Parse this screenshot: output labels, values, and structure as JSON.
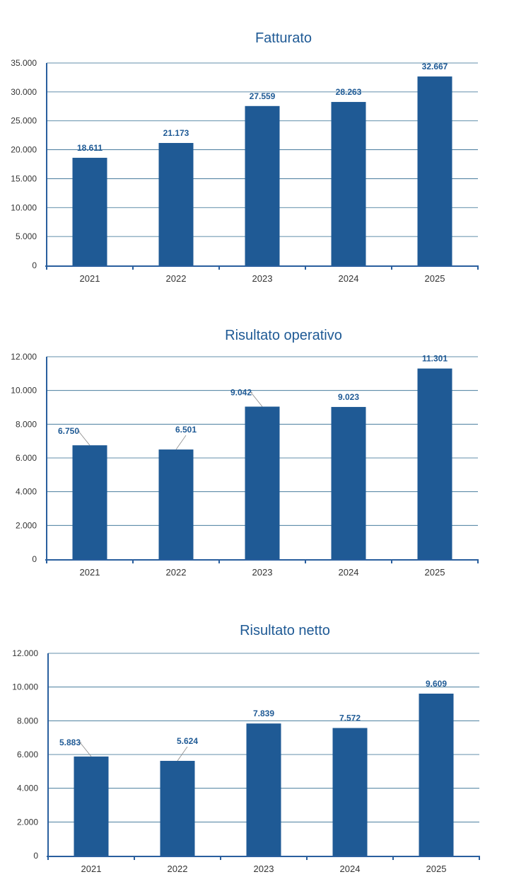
{
  "chart_data": [
    {
      "type": "bar",
      "title": "Fatturato",
      "categories": [
        "2021",
        "2022",
        "2023",
        "2024",
        "2025"
      ],
      "values": [
        18611,
        21173,
        27559,
        28263,
        32667
      ],
      "data_labels": [
        "18.611",
        "21.173",
        "27.559",
        "28.263",
        "32.667"
      ],
      "yticks": [
        0,
        5000,
        10000,
        15000,
        20000,
        25000,
        30000,
        35000
      ],
      "ytick_labels": [
        "0",
        "5.000",
        "10.000",
        "15.000",
        "20.000",
        "25.000",
        "30.000",
        "35.000"
      ],
      "ylim": [
        0,
        35000
      ],
      "xlabel": "",
      "ylabel": "",
      "grid": true,
      "bar_color": "#1f5a95"
    },
    {
      "type": "bar",
      "title": "Risultato operativo",
      "categories": [
        "2021",
        "2022",
        "2023",
        "2024",
        "2025"
      ],
      "values": [
        6750,
        6501,
        9042,
        9023,
        11301
      ],
      "data_labels": [
        "6.750",
        "6.501",
        "9.042",
        "9.023",
        "11.301"
      ],
      "yticks": [
        0,
        2000,
        4000,
        6000,
        8000,
        10000,
        12000
      ],
      "ytick_labels": [
        "0",
        "2.000",
        "4.000",
        "6.000",
        "8.000",
        "10.000",
        "12.000"
      ],
      "ylim": [
        0,
        12000
      ],
      "xlabel": "",
      "ylabel": "",
      "grid": true,
      "bar_color": "#1f5a95"
    },
    {
      "type": "bar",
      "title": "Risultato netto",
      "categories": [
        "2021",
        "2022",
        "2023",
        "2024",
        "2025"
      ],
      "values": [
        5883,
        5624,
        7839,
        7572,
        9609
      ],
      "data_labels": [
        "5.883",
        "5.624",
        "7.839",
        "7.572",
        "9.609"
      ],
      "yticks": [
        0,
        2000,
        4000,
        6000,
        8000,
        10000,
        12000
      ],
      "ytick_labels": [
        "0",
        "2.000",
        "4.000",
        "6.000",
        "8.000",
        "10.000",
        "12.000"
      ],
      "ylim": [
        0,
        12000
      ],
      "xlabel": "",
      "ylabel": "",
      "grid": true,
      "bar_color": "#1f5a95"
    }
  ]
}
